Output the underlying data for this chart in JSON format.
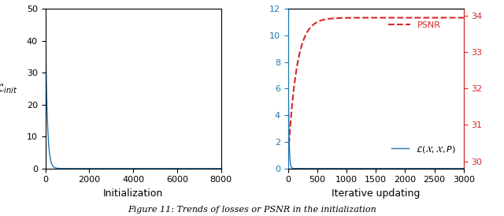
{
  "left_plot": {
    "xlabel": "Initialization",
    "ylabel": "$\\mathcal{L}_{init}$",
    "xlim": [
      0,
      8000
    ],
    "ylim": [
      0,
      50
    ],
    "yticks": [
      0,
      10,
      20,
      30,
      40,
      50
    ],
    "xticks": [
      0,
      2000,
      4000,
      6000,
      8000
    ],
    "line_color": "#1f77b4",
    "n_points": 8000,
    "start_val": 46.5,
    "decay": 0.012
  },
  "right_plot": {
    "xlabel": "Iterative updating",
    "left_ylim": [
      0,
      12
    ],
    "left_yticks": [
      0,
      2,
      4,
      6,
      8,
      10,
      12
    ],
    "right_ylim": [
      29.8,
      34.2
    ],
    "right_yticks": [
      30,
      31,
      32,
      33,
      34
    ],
    "xlim": [
      0,
      3000
    ],
    "xticks": [
      0,
      500,
      1000,
      1500,
      2000,
      2500,
      3000
    ],
    "loss_color": "#1f77b4",
    "psnr_color": "#d62728",
    "n_points": 3000,
    "loss_start": 11.5,
    "loss_decay": 0.08,
    "psnr_start": 30.0,
    "psnr_end": 33.95,
    "psnr_rise": 0.007,
    "loss_legend": "$\\mathcal{L}(\\mathcal{X}, \\mathcal{X}, P)$",
    "psnr_legend": "PSNR"
  },
  "caption": "Figure 11: Trends of losses or PSNR in the initialization",
  "figsize": [
    6.4,
    2.74
  ],
  "dpi": 100
}
